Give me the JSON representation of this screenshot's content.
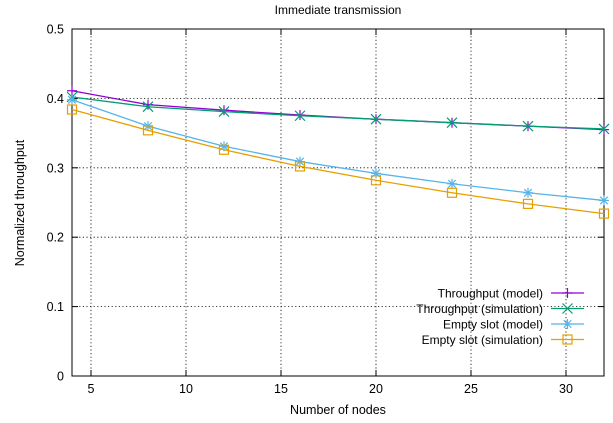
{
  "chart_data": {
    "type": "line",
    "title": "Immediate transmission",
    "xlabel": "Number of nodes",
    "ylabel": "Normalized throughput",
    "xlim": [
      4,
      32
    ],
    "ylim": [
      0,
      0.5
    ],
    "xticks": [
      5,
      10,
      15,
      20,
      25,
      30
    ],
    "yticks": [
      0,
      0.1,
      0.2,
      0.3,
      0.4,
      0.5
    ],
    "ytick_labels": [
      "0",
      "0.1",
      "0.2",
      "0.3",
      "0.4",
      "0.5"
    ],
    "grid": true,
    "legend_position": "bottom-right",
    "x": [
      4,
      8,
      12,
      16,
      20,
      24,
      28,
      32
    ],
    "series": [
      {
        "name": "Throughput (model)",
        "color": "#9400d3",
        "marker": "plus",
        "values": [
          0.411,
          0.391,
          0.383,
          0.376,
          0.37,
          0.365,
          0.36,
          0.355
        ]
      },
      {
        "name": "Throughput (simulation)",
        "color": "#009e73",
        "marker": "cross",
        "values": [
          0.402,
          0.388,
          0.381,
          0.375,
          0.37,
          0.365,
          0.36,
          0.356
        ]
      },
      {
        "name": "Empty slot (model)",
        "color": "#56b4e9",
        "marker": "star",
        "values": [
          0.398,
          0.36,
          0.331,
          0.309,
          0.292,
          0.277,
          0.264,
          0.253
        ]
      },
      {
        "name": "Empty slot (simulation)",
        "color": "#e69f00",
        "marker": "square",
        "values": [
          0.384,
          0.354,
          0.326,
          0.302,
          0.282,
          0.264,
          0.248,
          0.234
        ]
      }
    ]
  }
}
